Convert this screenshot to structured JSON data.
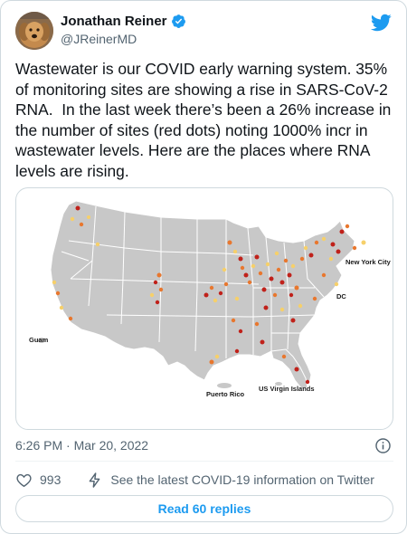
{
  "author": {
    "name": "Jonathan Reiner",
    "handle": "@JReinerMD",
    "verified": true,
    "avatar_icon": "dog-avatar"
  },
  "tweet": {
    "text": "Wastewater is our COVID early warning system. 35% of monitoring sites are showing a rise in SARS-CoV-2 RNA.  In the last week there’s been a 26% increase in the number of sites (red dots) noting 1000% incr in wastewater levels. Here are the places where RNA levels are rising."
  },
  "media": {
    "map_labels": {
      "new_york": "New York City",
      "dc": "DC",
      "guam": "Guam",
      "puerto_rico": "Puerto Rico",
      "usvi": "US Virgin Islands"
    },
    "colors": {
      "land": "#c8c8c8",
      "border": "#ffffff",
      "dot_red": "#c0211a",
      "dot_orange": "#e8772e",
      "dot_yellow": "#f6d06a"
    }
  },
  "meta": {
    "timestamp": "6:26 PM · Mar 20, 2022"
  },
  "actions": {
    "likes": "993",
    "covid_info": "See the latest COVID-19 information on Twitter",
    "read_replies": "Read 60 replies"
  },
  "colors": {
    "accent": "#1d9bf0",
    "text_secondary": "#536471",
    "border": "#cfd9de"
  }
}
